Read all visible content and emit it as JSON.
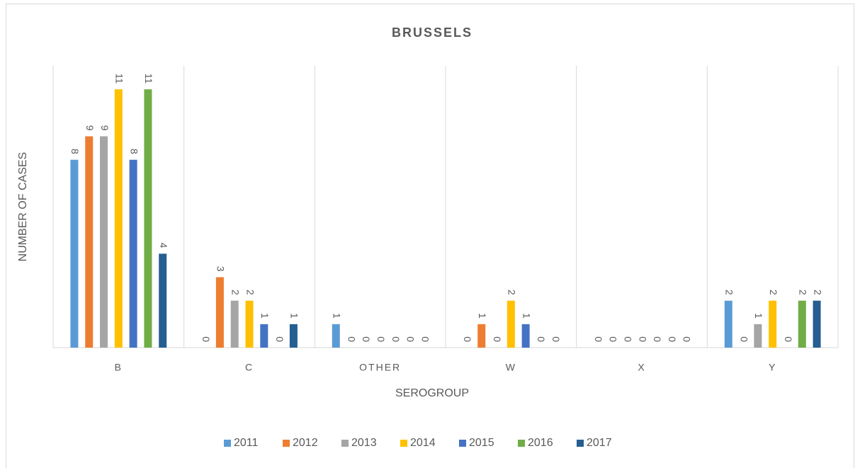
{
  "chart_data": {
    "type": "bar",
    "title": "BRUSSELS",
    "x_label": "SEROGROUP",
    "y_label": "NUMBER OF CASES",
    "categories": [
      "B",
      "C",
      "OTHER",
      "W",
      "X",
      "Y"
    ],
    "series": [
      {
        "name": "2011",
        "color": "#5b9bd5",
        "values": [
          8,
          0,
          1,
          0,
          0,
          2
        ]
      },
      {
        "name": "2012",
        "color": "#ed7d31",
        "values": [
          9,
          3,
          0,
          1,
          0,
          0
        ]
      },
      {
        "name": "2013",
        "color": "#a5a5a5",
        "values": [
          9,
          2,
          0,
          0,
          0,
          1
        ]
      },
      {
        "name": "2014",
        "color": "#ffc000",
        "values": [
          11,
          2,
          0,
          2,
          0,
          2
        ]
      },
      {
        "name": "2015",
        "color": "#4472c4",
        "values": [
          8,
          1,
          0,
          1,
          0,
          0
        ]
      },
      {
        "name": "2016",
        "color": "#70ad47",
        "values": [
          11,
          0,
          0,
          0,
          0,
          2
        ]
      },
      {
        "name": "2017",
        "color": "#255e91",
        "values": [
          4,
          1,
          0,
          0,
          0,
          2
        ]
      }
    ],
    "ylim": [
      0,
      12
    ],
    "legend": "bottom"
  }
}
